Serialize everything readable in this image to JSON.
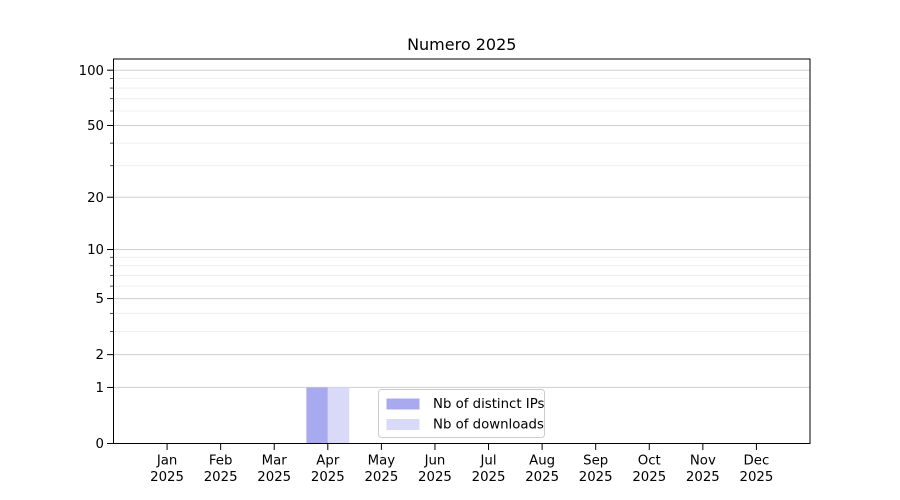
{
  "chart_data": {
    "type": "bar",
    "title": "Numero 2025",
    "categories": [
      "Jan\n2025",
      "Feb\n2025",
      "Mar\n2025",
      "Apr\n2025",
      "May\n2025",
      "Jun\n2025",
      "Jul\n2025",
      "Aug\n2025",
      "Sep\n2025",
      "Oct\n2025",
      "Nov\n2025",
      "Dec\n2025"
    ],
    "series": [
      {
        "name": "Nb of distinct IPs",
        "color": "#a9a9ef",
        "values": [
          0,
          0,
          0,
          1,
          0,
          0,
          0,
          0,
          0,
          0,
          0,
          0
        ]
      },
      {
        "name": "Nb of downloads",
        "color": "#d9d9f8",
        "values": [
          0,
          0,
          0,
          1,
          0,
          0,
          0,
          0,
          0,
          0,
          0,
          0
        ]
      }
    ],
    "y_axis": {
      "scale": "log1p",
      "major_ticks": [
        0,
        1,
        2,
        5,
        10,
        20,
        50,
        100
      ],
      "minor_ticks": [
        3,
        4,
        6,
        7,
        8,
        9,
        30,
        40,
        60,
        70,
        80,
        90
      ],
      "ylim": [
        0,
        115
      ]
    },
    "xlabel": "",
    "ylabel": "",
    "legend": {
      "entries": [
        "Nb of distinct IPs",
        "Nb of downloads"
      ],
      "position": "inside-bottom-center"
    },
    "grid": {
      "show": true,
      "major_color": "#cfcfcf",
      "minor_color": "#ebebeb"
    },
    "colors": {
      "spine": "#000000",
      "background": "#ffffff",
      "legend_border": "#cccccc"
    }
  }
}
